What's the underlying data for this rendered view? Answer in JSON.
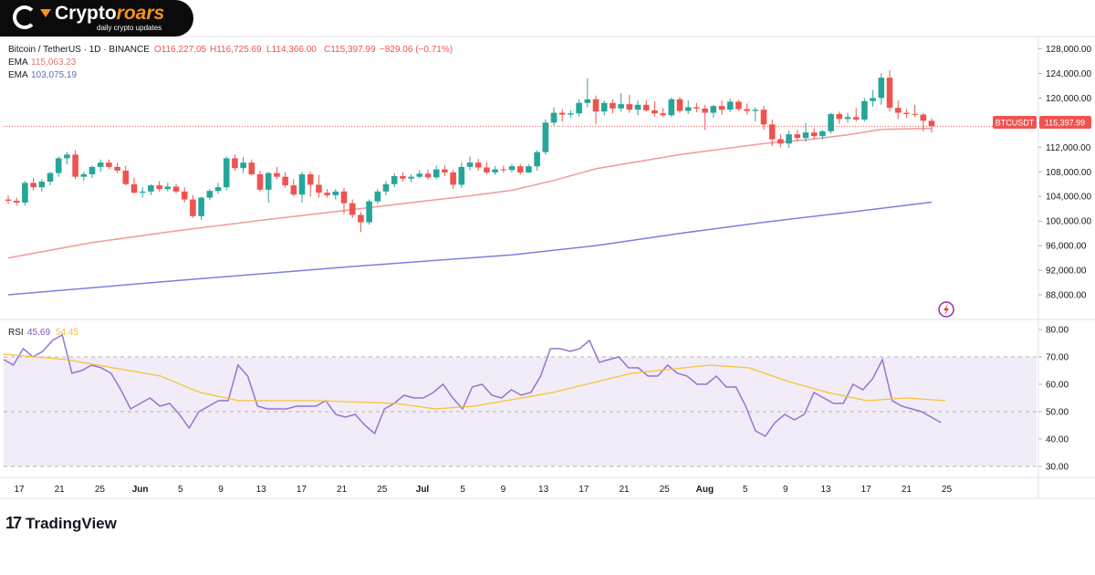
{
  "brand": {
    "name_main": "Crypto",
    "name_accent": "roars",
    "tagline": "daily crypto updates"
  },
  "footer": {
    "tradingview_label": "TradingView",
    "tradingview_mark": "17"
  },
  "chart_data": {
    "type": "candlestick",
    "legend": {
      "title": "Bitcoin / TetherUS · 1D · BINANCE",
      "open": "O116,227.05",
      "high": "H116,725.69",
      "low": "L114,366.00",
      "close": "C115,397.99",
      "change": "−829.06 (−0.71%)",
      "ema1_label": "EMA",
      "ema1_value": "115,063.23",
      "ema2_label": "EMA",
      "ema2_value": "103,075.19"
    },
    "symbol_tag": "BTCUSDT",
    "price_tag": "115,397.99",
    "last_price": 115397.99,
    "ylim": [
      84000,
      130000
    ],
    "y_ticks": [
      128000,
      124000,
      120000,
      116000,
      112000,
      108000,
      104000,
      100000,
      96000,
      92000,
      88000
    ],
    "y_tick_labels": [
      "128,000.00",
      "124,000.00",
      "120,000.00",
      "116,000.00",
      "112,000.00",
      "108,000.00",
      "104,000.00",
      "100,000.00",
      "96,000.00",
      "92,000.00",
      "88,000.00"
    ],
    "x_labels": [
      "17",
      "21",
      "25",
      "Jun",
      "5",
      "9",
      "13",
      "17",
      "21",
      "25",
      "Jul",
      "5",
      "9",
      "13",
      "17",
      "21",
      "25",
      "Aug",
      "5",
      "9",
      "13",
      "17",
      "21",
      "25"
    ],
    "candles": [
      [
        103500,
        104200,
        102800,
        103300
      ],
      [
        103300,
        103800,
        102500,
        103000
      ],
      [
        103000,
        106500,
        102500,
        106200
      ],
      [
        106200,
        107000,
        105000,
        105500
      ],
      [
        105500,
        106800,
        104800,
        106400
      ],
      [
        106400,
        108000,
        105800,
        107800
      ],
      [
        107800,
        110500,
        107200,
        110200
      ],
      [
        110200,
        111200,
        109200,
        110800
      ],
      [
        110800,
        111500,
        106800,
        107200
      ],
      [
        107200,
        108000,
        106500,
        107600
      ],
      [
        107600,
        109000,
        107000,
        108800
      ],
      [
        108800,
        110000,
        108000,
        109500
      ],
      [
        109500,
        110000,
        108500,
        108800
      ],
      [
        108800,
        109500,
        107800,
        108200
      ],
      [
        108200,
        109000,
        105800,
        106000
      ],
      [
        106000,
        107000,
        104500,
        104600
      ],
      [
        104600,
        105500,
        103800,
        104800
      ],
      [
        104800,
        106000,
        104200,
        105800
      ],
      [
        105800,
        106500,
        104800,
        105200
      ],
      [
        105200,
        106200,
        104800,
        105600
      ],
      [
        105600,
        106000,
        104500,
        104800
      ],
      [
        104800,
        105500,
        103000,
        103500
      ],
      [
        103500,
        104200,
        100500,
        100800
      ],
      [
        100800,
        104000,
        100200,
        103800
      ],
      [
        103800,
        105200,
        103400,
        104900
      ],
      [
        104900,
        106200,
        104400,
        105500
      ],
      [
        105500,
        110500,
        105000,
        110200
      ],
      [
        110200,
        110800,
        108200,
        108600
      ],
      [
        108600,
        110400,
        107800,
        109500
      ],
      [
        109500,
        110000,
        107400,
        107600
      ],
      [
        107600,
        108200,
        104800,
        105100
      ],
      [
        105100,
        108000,
        103000,
        107800
      ],
      [
        107800,
        108800,
        106800,
        107200
      ],
      [
        107200,
        108000,
        105400,
        105800
      ],
      [
        105800,
        106800,
        104000,
        104300
      ],
      [
        104300,
        108000,
        103000,
        107600
      ],
      [
        107600,
        108000,
        104000,
        105900
      ],
      [
        105900,
        107500,
        103800,
        104600
      ],
      [
        104600,
        105200,
        103800,
        104200
      ],
      [
        104200,
        105200,
        103500,
        104800
      ],
      [
        104800,
        105400,
        101200,
        102900
      ],
      [
        102900,
        103500,
        100500,
        101000
      ],
      [
        101000,
        101500,
        98200,
        99800
      ],
      [
        99800,
        103500,
        99400,
        103200
      ],
      [
        103200,
        105200,
        102800,
        104800
      ],
      [
        104800,
        106500,
        104200,
        106000
      ],
      [
        106000,
        107800,
        105500,
        107300
      ],
      [
        107300,
        107900,
        106400,
        106900
      ],
      [
        106900,
        107600,
        106300,
        107200
      ],
      [
        107200,
        108300,
        106900,
        107700
      ],
      [
        107700,
        108400,
        106700,
        107100
      ],
      [
        107100,
        109000,
        106800,
        108400
      ],
      [
        108400,
        109100,
        107300,
        107900
      ],
      [
        107900,
        108300,
        105200,
        105900
      ],
      [
        105900,
        109500,
        105400,
        108800
      ],
      [
        108800,
        110500,
        108200,
        109500
      ],
      [
        109500,
        110100,
        108200,
        108700
      ],
      [
        108700,
        109600,
        107600,
        107900
      ],
      [
        107900,
        108900,
        107500,
        108400
      ],
      [
        108400,
        109000,
        107900,
        108300
      ],
      [
        108300,
        109300,
        107900,
        108900
      ],
      [
        108900,
        109300,
        107500,
        107900
      ],
      [
        107900,
        109200,
        107800,
        108900
      ],
      [
        108900,
        111500,
        108200,
        111200
      ],
      [
        111200,
        116500,
        110800,
        116000
      ],
      [
        116000,
        118500,
        115500,
        117600
      ],
      [
        117600,
        118200,
        116200,
        117300
      ],
      [
        117300,
        118000,
        116800,
        117500
      ],
      [
        117500,
        119800,
        117000,
        119200
      ],
      [
        119200,
        123200,
        118500,
        119800
      ],
      [
        119800,
        120400,
        115800,
        117800
      ],
      [
        117800,
        119600,
        117200,
        119200
      ],
      [
        119200,
        119800,
        117500,
        118300
      ],
      [
        118300,
        120800,
        117800,
        119000
      ],
      [
        119000,
        120500,
        117600,
        118100
      ],
      [
        118100,
        119600,
        117200,
        118900
      ],
      [
        118900,
        119600,
        117800,
        118000
      ],
      [
        118000,
        119500,
        117000,
        117500
      ],
      [
        117500,
        118400,
        116900,
        117200
      ],
      [
        117200,
        120100,
        116900,
        119800
      ],
      [
        119800,
        120200,
        117600,
        117900
      ],
      [
        117900,
        119600,
        117400,
        118500
      ],
      [
        118500,
        119200,
        117700,
        118300
      ],
      [
        118300,
        118900,
        114800,
        117600
      ],
      [
        117600,
        118900,
        116800,
        118700
      ],
      [
        118700,
        119600,
        117300,
        118100
      ],
      [
        118100,
        119900,
        117700,
        119400
      ],
      [
        119400,
        119700,
        117900,
        118200
      ],
      [
        118200,
        119100,
        117300,
        117900
      ],
      [
        117900,
        118500,
        116200,
        118100
      ],
      [
        118100,
        118700,
        114800,
        115700
      ],
      [
        115700,
        116500,
        112200,
        113300
      ],
      [
        113300,
        114100,
        112000,
        112600
      ],
      [
        112600,
        114700,
        111900,
        114100
      ],
      [
        114100,
        114800,
        113000,
        113500
      ],
      [
        113500,
        115900,
        112900,
        114400
      ],
      [
        114400,
        115100,
        113300,
        113800
      ],
      [
        113800,
        114800,
        113200,
        114600
      ],
      [
        114600,
        117600,
        114200,
        117400
      ],
      [
        117400,
        117800,
        115800,
        116600
      ],
      [
        116600,
        117600,
        116000,
        116900
      ],
      [
        116900,
        118400,
        116200,
        116500
      ],
      [
        116500,
        120000,
        116200,
        119500
      ],
      [
        119500,
        121300,
        118600,
        120000
      ],
      [
        120000,
        124000,
        118900,
        123300
      ],
      [
        123300,
        124500,
        117800,
        118400
      ],
      [
        118400,
        119600,
        116600,
        117600
      ],
      [
        117600,
        118200,
        116800,
        117400
      ],
      [
        117400,
        118900,
        116900,
        117300
      ],
      [
        117300,
        117600,
        114600,
        116300
      ],
      [
        116300,
        116700,
        114400,
        115398
      ]
    ],
    "ema_fast": [
      [
        0,
        94000
      ],
      [
        10,
        96500
      ],
      [
        20,
        98400
      ],
      [
        30,
        100100
      ],
      [
        40,
        101700
      ],
      [
        45,
        102500
      ],
      [
        50,
        103300
      ],
      [
        55,
        104100
      ],
      [
        60,
        105000
      ],
      [
        65,
        106600
      ],
      [
        70,
        108500
      ],
      [
        80,
        110800
      ],
      [
        90,
        112600
      ],
      [
        95,
        113200
      ],
      [
        100,
        114000
      ],
      [
        104,
        114900
      ],
      [
        110,
        115063
      ]
    ],
    "ema_slow": [
      [
        0,
        88000
      ],
      [
        20,
        90300
      ],
      [
        40,
        92500
      ],
      [
        60,
        94500
      ],
      [
        70,
        96000
      ],
      [
        80,
        98000
      ],
      [
        90,
        99800
      ],
      [
        100,
        101400
      ],
      [
        110,
        103075
      ]
    ],
    "rsi": {
      "label": "RSI",
      "value": "45.69",
      "ma_value": "54.45",
      "ylim": [
        27,
        83
      ],
      "y_ticks": [
        80,
        70,
        60,
        50,
        40,
        30
      ],
      "y_tick_labels": [
        "80.00",
        "70.00",
        "60.00",
        "50.00",
        "40.00",
        "30.00"
      ],
      "band_upper": 70,
      "band_lower": 30,
      "midline": 50,
      "values": [
        69,
        67,
        73,
        70,
        72,
        76,
        78,
        64,
        65,
        67,
        66,
        64,
        58,
        51,
        53,
        55,
        52,
        53,
        49,
        44,
        50,
        52,
        54,
        54,
        67,
        63,
        52,
        51,
        51,
        51,
        52,
        52,
        52,
        54,
        49,
        48,
        49,
        45,
        42,
        51,
        53,
        56,
        55,
        55,
        57,
        60,
        55,
        51,
        59,
        60,
        56,
        55,
        58,
        56,
        57,
        63,
        73,
        73,
        72,
        73,
        76,
        68,
        69,
        70,
        66,
        66,
        63,
        63,
        67,
        64,
        63,
        60,
        60,
        63,
        59,
        59,
        52,
        43,
        41,
        46,
        49,
        47,
        49,
        57,
        55,
        53,
        53,
        60,
        58,
        62,
        69,
        54,
        52,
        51,
        50,
        48,
        46
      ],
      "ma": [
        [
          0,
          71
        ],
        [
          8,
          69
        ],
        [
          12,
          67
        ],
        [
          20,
          63
        ],
        [
          25,
          57
        ],
        [
          30,
          54
        ],
        [
          40,
          54
        ],
        [
          50,
          53
        ],
        [
          55,
          51
        ],
        [
          60,
          52
        ],
        [
          70,
          57
        ],
        [
          80,
          64
        ],
        [
          90,
          67
        ],
        [
          95,
          66
        ],
        [
          100,
          61
        ],
        [
          105,
          57
        ],
        [
          110,
          54
        ],
        [
          115,
          55
        ],
        [
          120,
          54
        ]
      ]
    }
  }
}
